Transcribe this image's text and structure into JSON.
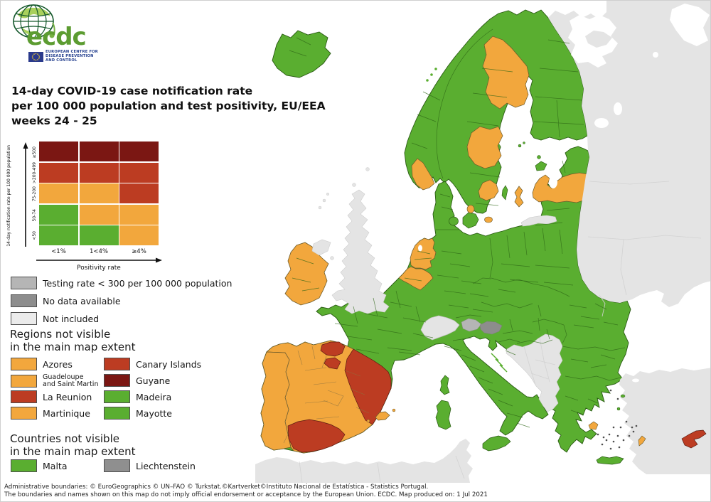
{
  "logo": {
    "brand": "ecdc",
    "org_lines": [
      "EUROPEAN CENTRE FOR",
      "DISEASE PREVENTION",
      "AND CONTROL"
    ]
  },
  "title_lines": [
    "14-day COVID-19 case notification rate",
    "per 100 000 population and test positivity, EU/EEA",
    "weeks 24 - 25"
  ],
  "matrix": {
    "y_axis_label": "14-day notification rate per 100 000 population",
    "x_axis_label": "Positivity rate",
    "col_labels": [
      "<1%",
      "1<4%",
      "≥4%"
    ],
    "rows": [
      {
        "label": "≥500",
        "cells": [
          "darkred",
          "darkred",
          "darkred"
        ]
      },
      {
        "label": ">200-499",
        "cells": [
          "red",
          "red",
          "red"
        ]
      },
      {
        "label": "75-200",
        "cells": [
          "orange",
          "orange",
          "red"
        ]
      },
      {
        "label": "50-74",
        "cells": [
          "green",
          "orange",
          "orange"
        ]
      },
      {
        "label": "<50",
        "cells": [
          "green",
          "green",
          "orange"
        ]
      }
    ]
  },
  "status_legend": [
    {
      "color": "gray_testing",
      "label": "Testing rate < 300 per 100 000 population"
    },
    {
      "color": "gray_nodata",
      "label": "No data available"
    },
    {
      "color": "gray_notincluded",
      "label": "Not included"
    }
  ],
  "regions_legend": {
    "heading_lines": [
      "Regions not visible",
      "in the main map extent"
    ],
    "col1": [
      {
        "color": "orange",
        "label": "Azores"
      },
      {
        "color": "orange",
        "label_lines": [
          "Guadeloupe",
          "and Saint Martin"
        ]
      },
      {
        "color": "red",
        "label": "La Reunion"
      },
      {
        "color": "orange",
        "label": "Martinique"
      }
    ],
    "col2": [
      {
        "color": "red",
        "label": "Canary Islands"
      },
      {
        "color": "darkred",
        "label": "Guyane"
      },
      {
        "color": "green",
        "label": "Madeira"
      },
      {
        "color": "green",
        "label": "Mayotte"
      }
    ]
  },
  "countries_legend": {
    "heading_lines": [
      "Countries not visible",
      "in the main map extent"
    ],
    "items": [
      {
        "color": "green",
        "label": "Malta"
      },
      {
        "color": "gray_liechtenstein",
        "label": "Liechtenstein"
      }
    ]
  },
  "footer_lines": [
    "Administrative boundaries: © EuroGeographics © UN–FAO © Turkstat.©Kartverket©Instituto Nacional de Estatística - Statistics Portugal.",
    "The boundaries and names shown on this map do not imply official endorsement or acceptance by the European Union. ECDC. Map produced on: 1 Jul 2021"
  ],
  "colors": {
    "green": "#5aae30",
    "orange": "#f2a73d",
    "red": "#bc3c22",
    "darkred": "#7b1713",
    "gray_testing": "#b5b5b5",
    "gray_nodata": "#8d8d8d",
    "gray_notincluded": "#ebebeb",
    "gray_liechtenstein": "#8f8f8f",
    "not_included_land": "#e4e4e4",
    "sea": "#ffffff"
  },
  "map": {
    "regions": {
      "sea": "sea",
      "iceland": "green",
      "fennoscandia": "green",
      "mainland": "green",
      "norway_southwest": "orange",
      "sweden_norrbotten": "orange",
      "sweden_dalarna": "orange",
      "sweden_sodermanland": "orange",
      "gotland": "orange",
      "oland": "green",
      "denmark_funen": "green",
      "denmark_zealand": "green",
      "copenhagen": "orange",
      "bornholm": "orange",
      "aland": "green",
      "estonia_islands": "green",
      "latvia": "orange",
      "kaliningrad": "not_included_land",
      "russia_east": "not_included_land",
      "kola": "not_included_land",
      "uk": "not_included_land",
      "uk_islands": "not_included_land",
      "northern_ireland": "not_included_land",
      "ireland": "orange",
      "netherlands": "orange",
      "belgium": "orange",
      "switzerland": "not_included_land",
      "alps_west": "gray_testing",
      "alps_east": "gray_nodata",
      "balkans": "not_included_land",
      "turkey": "not_included_land",
      "north_africa": "not_included_land",
      "portugal": "orange",
      "spain": "orange",
      "spain_east": "red",
      "spain_andalusia": "red",
      "spain_basque_navarre": "red",
      "spain_rioja": "red",
      "balearic_islands": "orange",
      "corsica": "green",
      "sardinia": "green",
      "sicily": "green",
      "crete": "green",
      "greek_islands": "green",
      "attica": "orange",
      "dodecanese_island": "orange",
      "cyprus": "red",
      "norway_islands": "green",
      "croatian_islands": "green"
    }
  }
}
